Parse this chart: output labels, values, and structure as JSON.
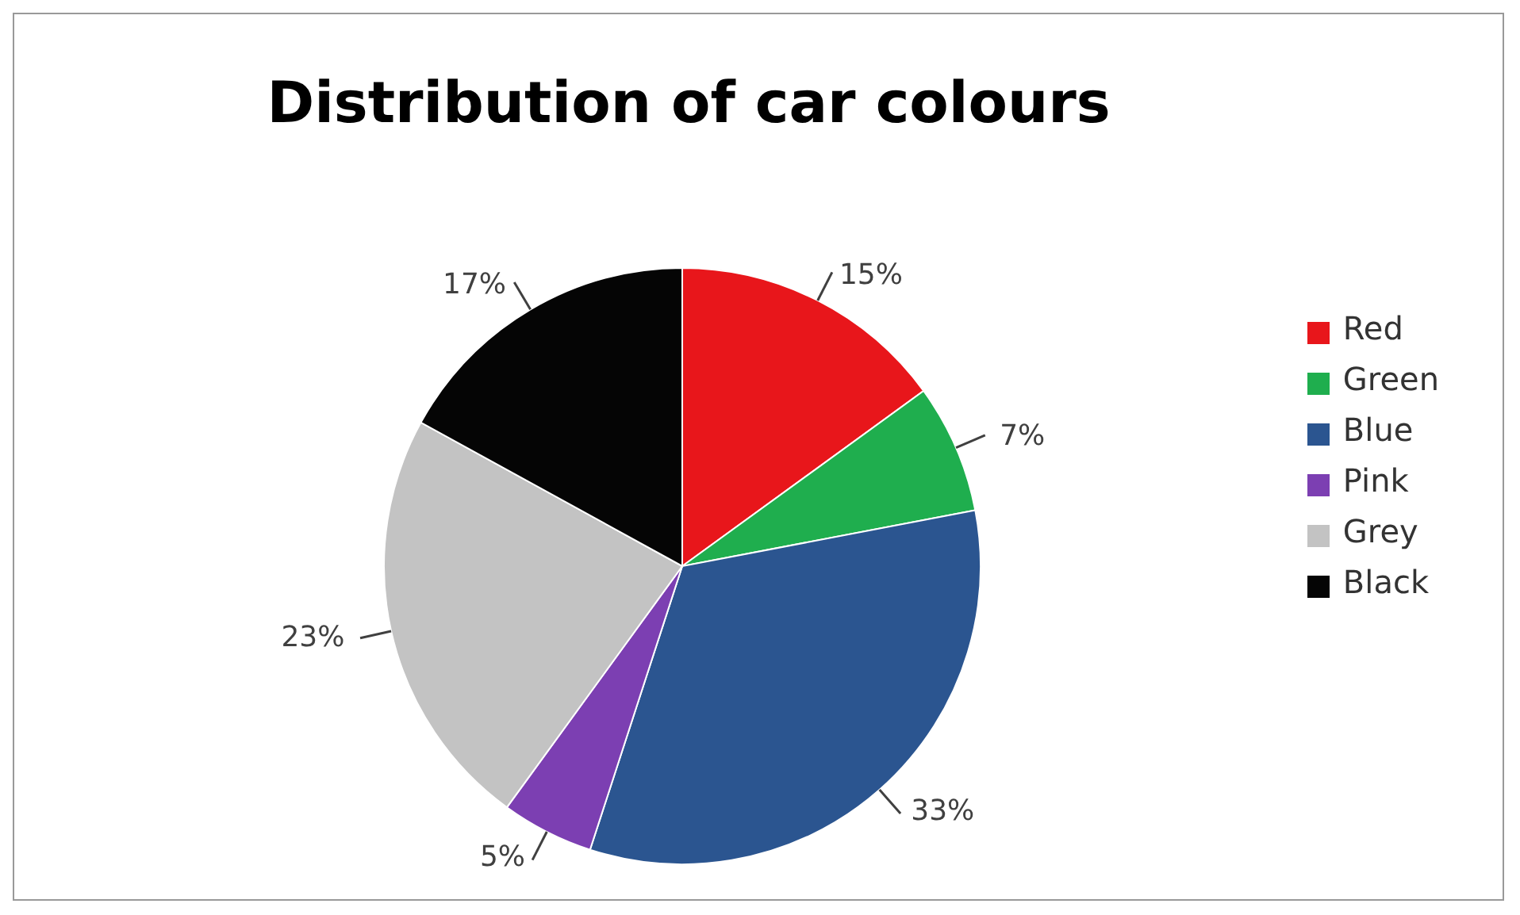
{
  "chart_data": {
    "type": "pie",
    "title": "Distribution of car colours",
    "categories": [
      "Red",
      "Green",
      "Blue",
      "Pink",
      "Grey",
      "Black"
    ],
    "values": [
      15,
      7,
      33,
      5,
      23,
      17
    ],
    "colors": [
      "#e8161b",
      "#1fae4e",
      "#2b5590",
      "#7c3fb2",
      "#c3c3c3",
      "#050505"
    ],
    "value_labels": [
      "15%",
      "7%",
      "33%",
      "5%",
      "23%",
      "17%"
    ],
    "legend": "right"
  }
}
